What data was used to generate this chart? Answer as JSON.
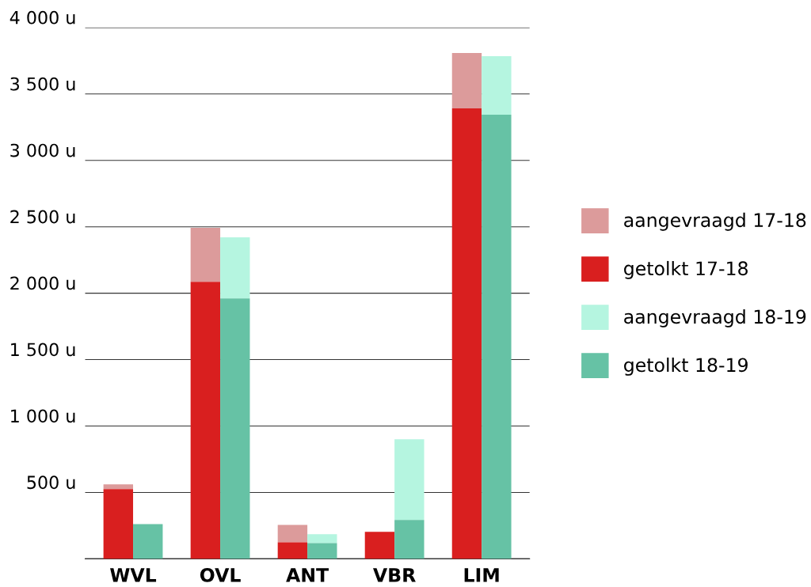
{
  "chart_data": {
    "type": "bar",
    "categories": [
      "WVL",
      "OVL",
      "ANT",
      "VBR",
      "LIM"
    ],
    "series": [
      {
        "name": "aangevraagd 17-18",
        "color": "#dc9b9b",
        "base": [
          525,
          2086,
          125,
          null,
          3392
        ],
        "values": [
          35,
          406,
          131,
          null,
          417
        ]
      },
      {
        "name": "getolkt 17-18",
        "color": "#d91f1f",
        "values": [
          525,
          2086,
          125,
          203,
          3392
        ]
      },
      {
        "name": "aangevraagd 18-19",
        "color": "#b5f5e0",
        "base": [
          null,
          1961,
          119,
          292,
          3344
        ],
        "values": [
          null,
          459,
          66,
          608,
          441
        ]
      },
      {
        "name": "getolkt 18-19",
        "color": "#66c2a5",
        "values": [
          262,
          1961,
          119,
          292,
          3344
        ]
      }
    ],
    "ylim": [
      0,
      4000
    ],
    "yticks": [
      {
        "value": 0,
        "label": null
      },
      {
        "value": 500,
        "label": "500 u"
      },
      {
        "value": 1000,
        "label": "1 000 u"
      },
      {
        "value": 1500,
        "label": "1 500 u"
      },
      {
        "value": 2000,
        "label": "2 000 u"
      },
      {
        "value": 2500,
        "label": "2 500 u"
      },
      {
        "value": 3000,
        "label": "3 000 u"
      },
      {
        "value": 3500,
        "label": "3 500 u"
      },
      {
        "value": 4000,
        "label": "4 000 u"
      }
    ],
    "grid": "y",
    "legend": "right"
  }
}
